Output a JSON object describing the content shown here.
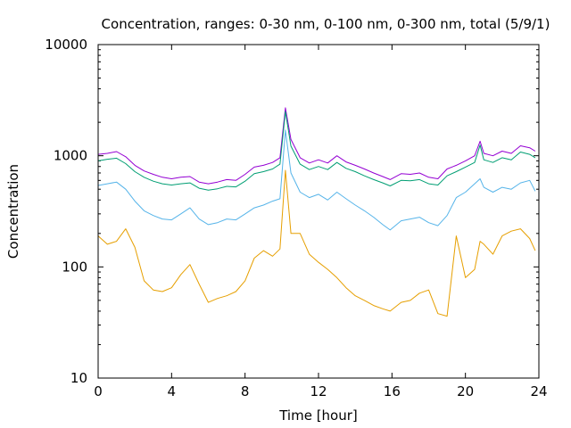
{
  "chart_data": {
    "type": "line",
    "title": "Concentration, ranges: 0-30 nm, 0-100 nm, 0-300 nm, total (5/9/1)",
    "xlabel": "Time [hour]",
    "ylabel": "Concentration",
    "xlim": [
      0,
      24
    ],
    "ylim": [
      10,
      10000
    ],
    "yscale": "log",
    "grid": false,
    "legend": "none",
    "x_ticks": [
      "0",
      "4",
      "8",
      "12",
      "16",
      "20",
      "24"
    ],
    "y_ticks": [
      "10",
      "100",
      "1000",
      "10000"
    ],
    "x": [
      0,
      0.5,
      1,
      1.5,
      2,
      2.5,
      3,
      3.5,
      4,
      4.5,
      5,
      5.5,
      6,
      6.5,
      7,
      7.5,
      8,
      8.5,
      9,
      9.5,
      9.9,
      10.2,
      10.5,
      11,
      11.5,
      12,
      12.5,
      13,
      13.5,
      14,
      14.5,
      15,
      15.5,
      15.9,
      16.5,
      17,
      17.5,
      18,
      18.5,
      19,
      19.5,
      20,
      20.5,
      20.8,
      21,
      21.5,
      22,
      22.5,
      23,
      23.5,
      23.8
    ],
    "series": [
      {
        "color": "#9400d3",
        "values": [
          1030,
          1050,
          1090,
          980,
          820,
          730,
          680,
          640,
          620,
          640,
          650,
          580,
          560,
          580,
          610,
          600,
          680,
          790,
          820,
          870,
          960,
          2700,
          1400,
          960,
          860,
          920,
          860,
          1000,
          880,
          820,
          760,
          700,
          650,
          610,
          690,
          680,
          700,
          640,
          620,
          760,
          820,
          900,
          1000,
          1350,
          1050,
          1000,
          1100,
          1050,
          1230,
          1180,
          1100
        ]
      },
      {
        "color": "#009e73",
        "values": [
          900,
          930,
          950,
          850,
          720,
          640,
          590,
          560,
          545,
          560,
          570,
          510,
          490,
          505,
          530,
          525,
          590,
          690,
          720,
          760,
          840,
          2500,
          1220,
          840,
          750,
          800,
          750,
          870,
          770,
          720,
          660,
          610,
          570,
          535,
          600,
          595,
          610,
          560,
          545,
          660,
          720,
          790,
          870,
          1250,
          920,
          870,
          960,
          920,
          1080,
          1030,
          960
        ]
      },
      {
        "color": "#56b4e9",
        "values": [
          540,
          560,
          580,
          500,
          390,
          320,
          290,
          270,
          265,
          300,
          340,
          270,
          240,
          250,
          270,
          265,
          300,
          340,
          360,
          390,
          410,
          1700,
          700,
          470,
          420,
          450,
          400,
          470,
          410,
          360,
          320,
          280,
          240,
          215,
          260,
          270,
          280,
          250,
          235,
          290,
          420,
          470,
          560,
          620,
          520,
          470,
          520,
          500,
          570,
          600,
          480
        ]
      },
      {
        "color": "#e69f00",
        "values": [
          190,
          160,
          170,
          220,
          150,
          75,
          62,
          60,
          65,
          85,
          105,
          70,
          48,
          52,
          55,
          60,
          75,
          120,
          140,
          125,
          145,
          740,
          200,
          200,
          130,
          110,
          95,
          80,
          65,
          55,
          50,
          45,
          42,
          40,
          48,
          50,
          58,
          62,
          38,
          36,
          190,
          80,
          95,
          170,
          160,
          130,
          190,
          210,
          220,
          180,
          140
        ]
      }
    ]
  }
}
